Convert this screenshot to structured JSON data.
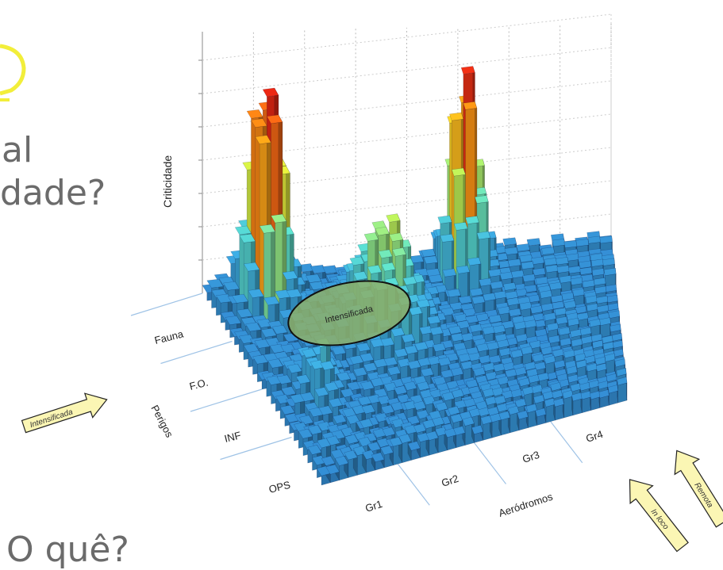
{
  "slide": {
    "line1": "al",
    "line2": "dade?",
    "line3": "O quê?"
  },
  "arrows": {
    "left": "Intensificada",
    "middle": "In loco",
    "right": "Remota"
  },
  "colors": {
    "lightbulb": "#f2ee3a",
    "arrow_fill": "#fbf6b4",
    "ellipse_fill": "#8db06a",
    "bar_low": "#2f80c8",
    "bar_high": "#8b0000"
  },
  "chart_data": {
    "type": "3d-bar-surface",
    "title": "",
    "zlabel": "Criticidade",
    "xlabel": "Aeródromos",
    "ylabel": "Perigos",
    "x_categories": [
      "Gr1",
      "Gr2",
      "Gr3",
      "Gr4"
    ],
    "y_categories": [
      "OPS",
      "INF",
      "F.O.",
      "Fauna"
    ],
    "annotation": "Intensificada",
    "peaks": [
      {
        "aerodromo": "Gr1",
        "perigo": "Fauna",
        "relative_height": 1.0
      },
      {
        "aerodromo": "Gr3",
        "perigo": "Fauna",
        "relative_height": 0.82
      },
      {
        "aerodromo": "Gr2",
        "perigo": "F.O.",
        "relative_height": 0.42
      },
      {
        "aerodromo": "Gr1",
        "perigo": "INF",
        "relative_height": 0.18
      }
    ]
  }
}
